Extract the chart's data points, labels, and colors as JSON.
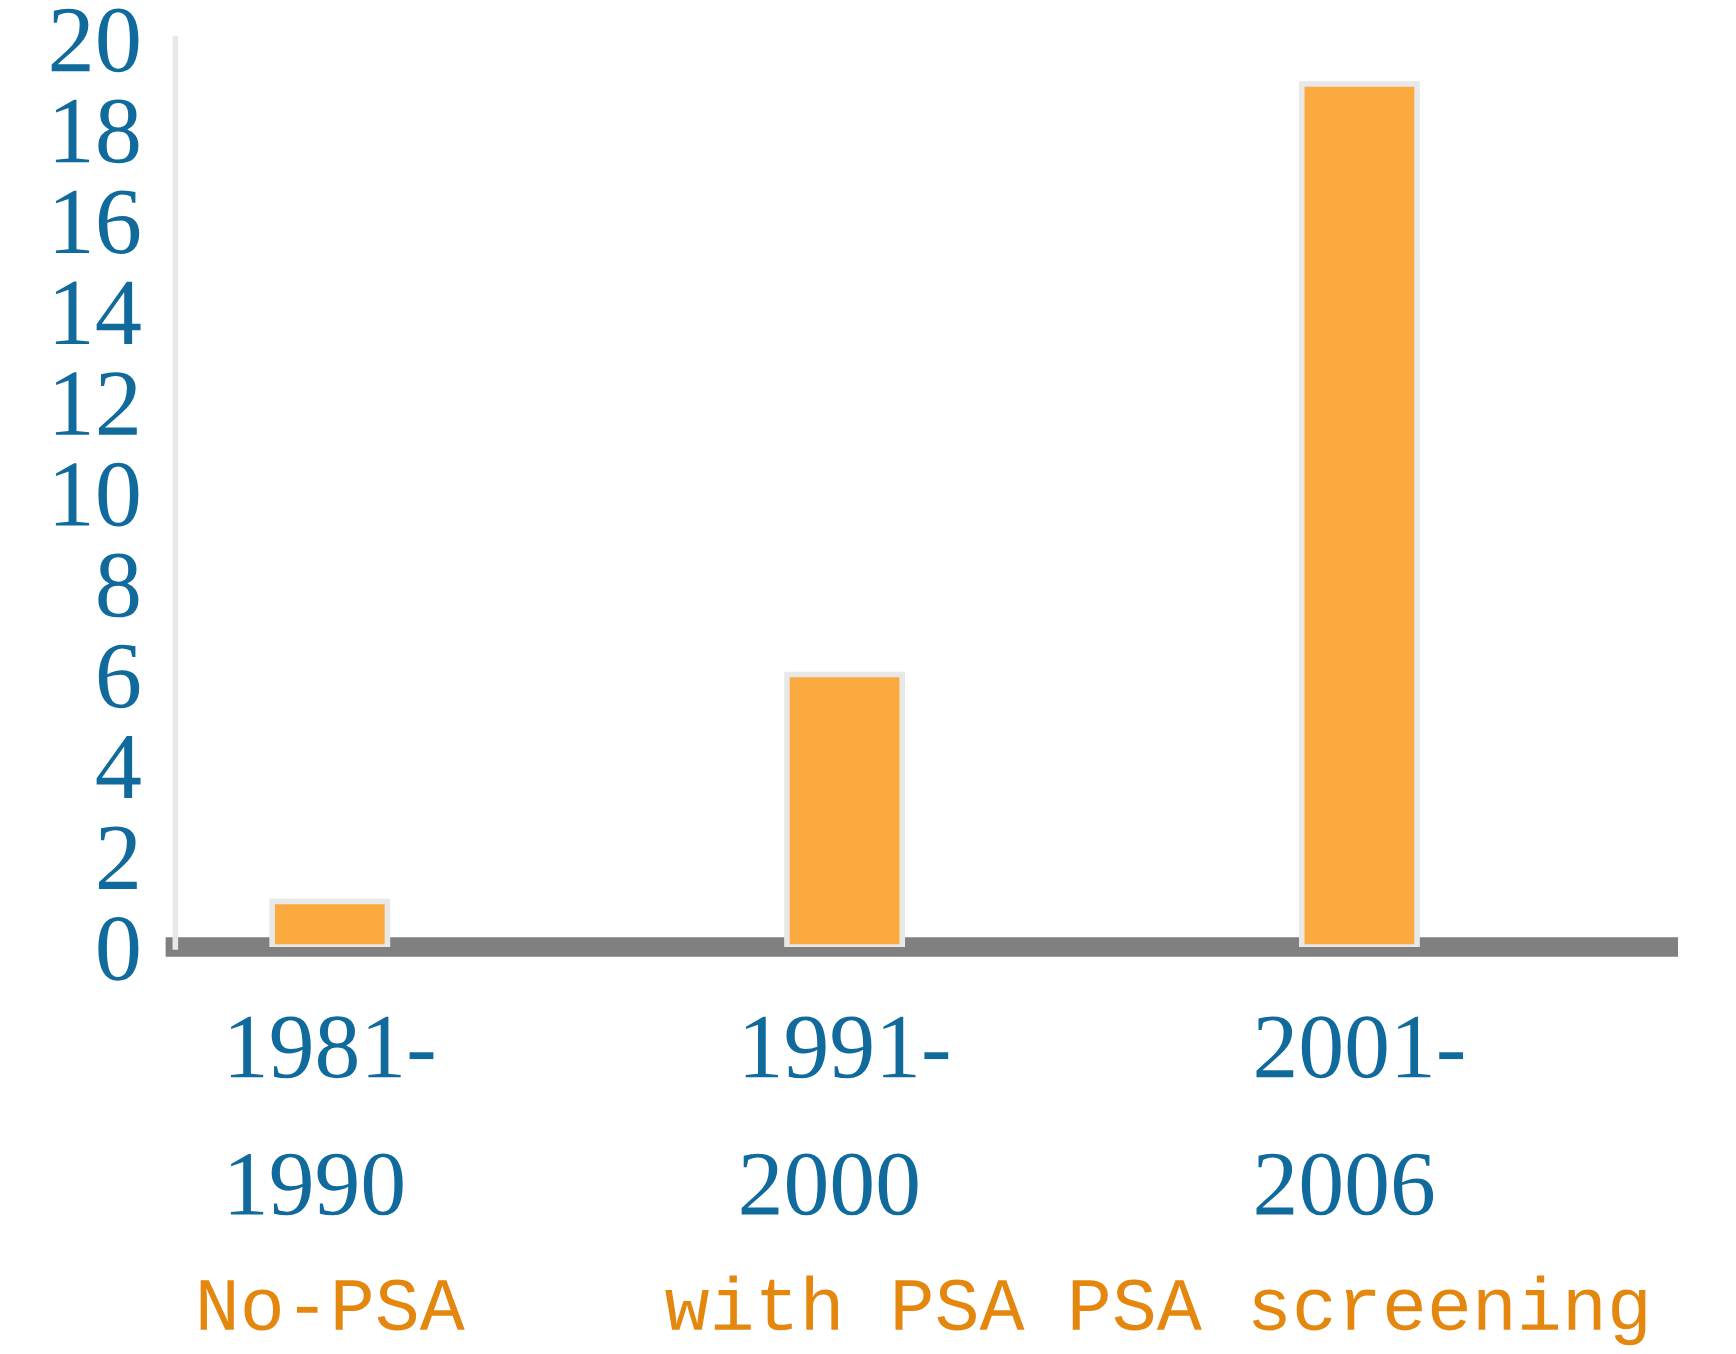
{
  "chart_data": {
    "type": "bar",
    "categories": [
      "1981-\n1990",
      "1991-\n2000",
      "2001-\n2006"
    ],
    "values": [
      1,
      6,
      19
    ],
    "color": "#fbaa40",
    "ylim": [
      0,
      20
    ],
    "yticks": [
      0,
      2,
      4,
      6,
      8,
      10,
      12,
      14,
      16,
      18,
      20
    ],
    "grid": false,
    "annotations": [
      "No-PSA",
      "with PSA",
      "PSA screening"
    ]
  }
}
